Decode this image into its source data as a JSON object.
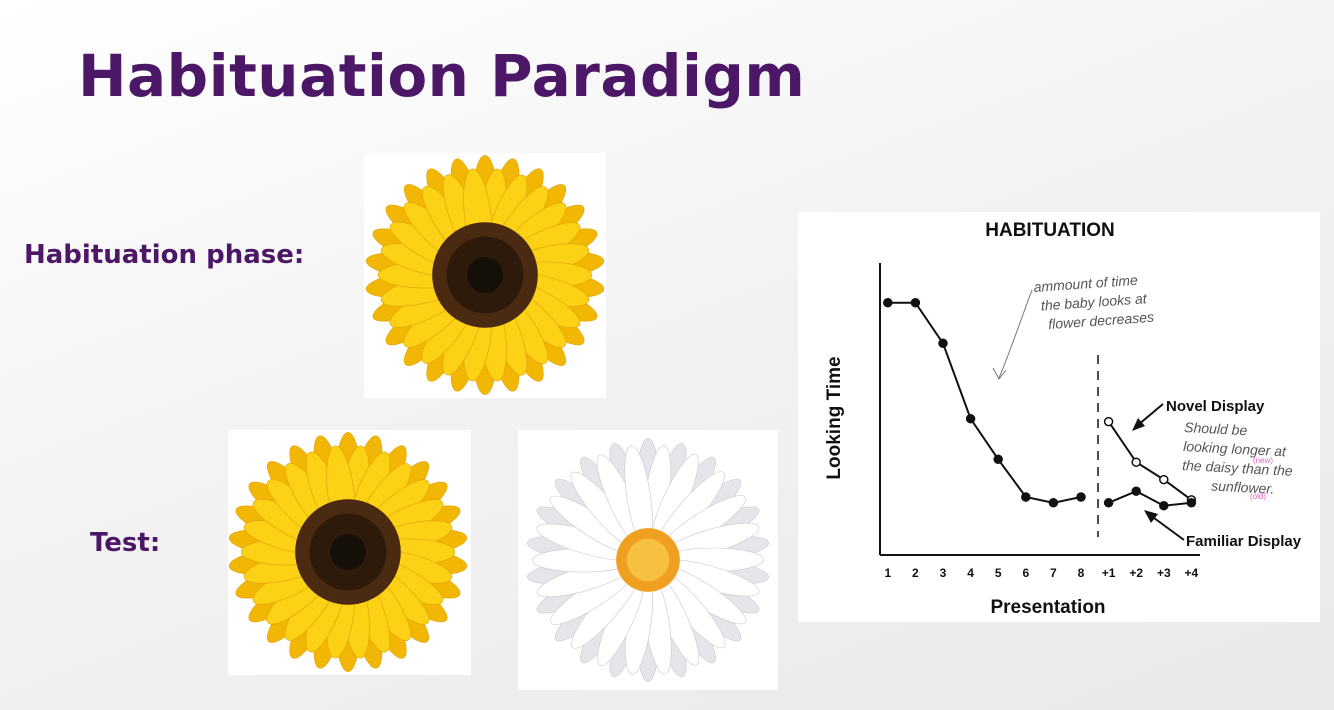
{
  "header": {
    "title": "Habituation Paradigm"
  },
  "labels": {
    "habituation_phase": "Habituation phase:",
    "test": "Test:"
  },
  "chart_data": {
    "type": "line",
    "title": "HABITUATION",
    "x_label": "Presentation",
    "y_label": "Looking Time",
    "categories": [
      "1",
      "2",
      "3",
      "4",
      "5",
      "6",
      "7",
      "8",
      "+1",
      "+2",
      "+3",
      "+4"
    ],
    "ylim": [
      0,
      10
    ],
    "series": [
      {
        "color": "#111111",
        "marker": "filled",
        "values": [
          8.7,
          8.7,
          7.3,
          4.7,
          3.3,
          2.0,
          1.8,
          2.0,
          null,
          null,
          null,
          null
        ]
      },
      {
        "name": "Novel Display",
        "color": "#111111",
        "marker": "open",
        "values": [
          null,
          null,
          null,
          null,
          null,
          null,
          null,
          null,
          4.6,
          3.2,
          2.6,
          1.9
        ]
      },
      {
        "name": "Familiar Display",
        "color": "#111111",
        "marker": "filled",
        "values": [
          null,
          null,
          null,
          null,
          null,
          null,
          null,
          null,
          1.8,
          2.2,
          1.7,
          1.8
        ]
      }
    ],
    "annotations": {
      "decrease_note": [
        "ammount of time",
        "the baby looks at",
        "flower decreases"
      ],
      "longer_note": [
        "Should be",
        "looking longer at",
        "the daisy than the",
        "sunflower."
      ],
      "new_tag": "(new)",
      "old_tag": "(old)"
    }
  }
}
